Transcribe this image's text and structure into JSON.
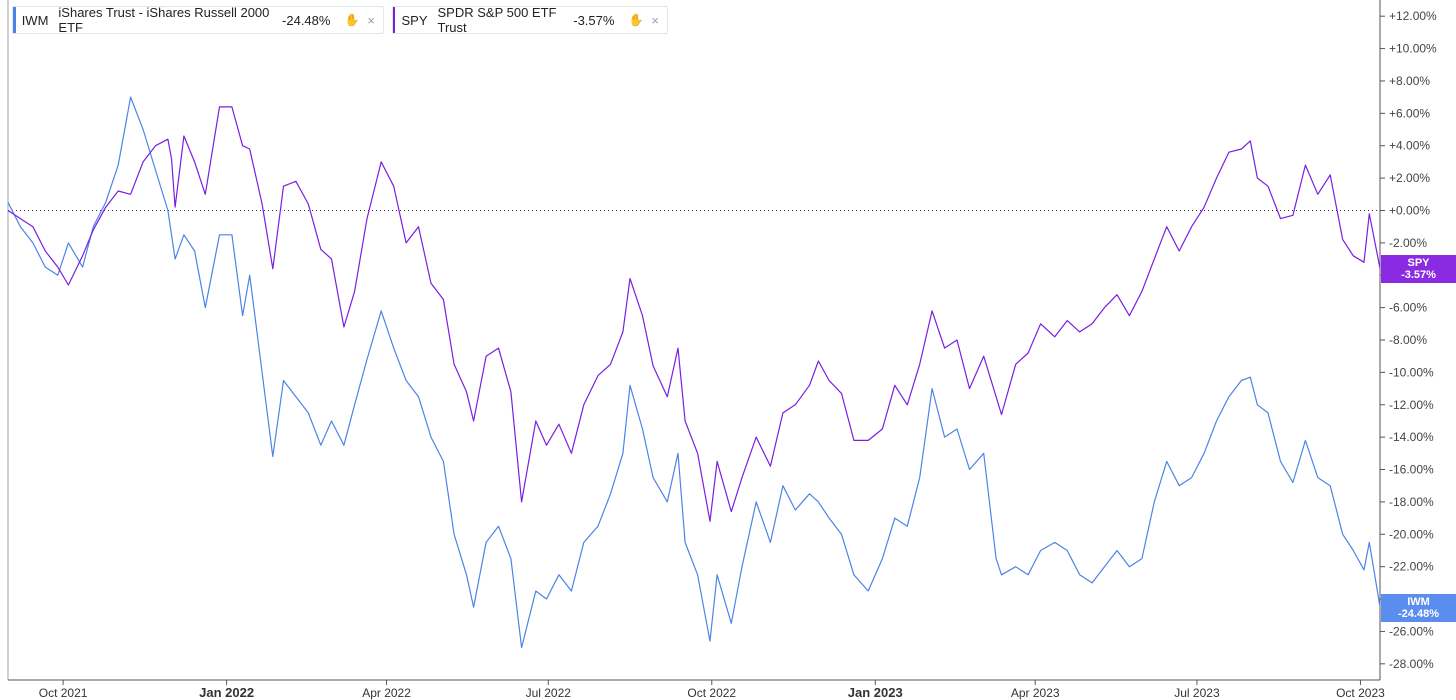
{
  "legend": [
    {
      "symbol": "IWM",
      "name": "iShares Trust - iShares Russell 2000 ETF",
      "change": "-24.48%",
      "color": "#4c84e6",
      "icon": "share-icon",
      "close": "×"
    },
    {
      "symbol": "SPY",
      "name": "SPDR S&P 500 ETF Trust",
      "change": "-3.57%",
      "color": "#7a1fe0",
      "icon": "share-icon",
      "close": "×"
    }
  ],
  "end_labels": {
    "spy": {
      "sym": "SPY",
      "val": "-3.57%",
      "color": "#8a2be2"
    },
    "iwm": {
      "sym": "IWM",
      "val": "-24.48%",
      "color": "#5b8def"
    }
  },
  "chart_data": {
    "type": "line",
    "ylim": [
      -29,
      13
    ],
    "yticks": [
      "+12.00%",
      "+10.00%",
      "+8.00%",
      "+6.00%",
      "+4.00%",
      "+2.00%",
      "+0.00%",
      "-2.00%",
      "-4.00%",
      "-6.00%",
      "-8.00%",
      "-10.00%",
      "-12.00%",
      "-14.00%",
      "-16.00%",
      "-18.00%",
      "-20.00%",
      "-22.00%",
      "-24.00%",
      "-26.00%",
      "-28.00%"
    ],
    "ytick_values": [
      12,
      10,
      8,
      6,
      4,
      2,
      0,
      -2,
      -4,
      -6,
      -8,
      -10,
      -12,
      -14,
      -16,
      -18,
      -20,
      -22,
      -24,
      -26,
      -28
    ],
    "xlim": [
      "2021-08-31",
      "2023-10-12"
    ],
    "xticks": [
      {
        "label": "Oct 2021",
        "date": "2021-10-01",
        "major": false
      },
      {
        "label": "Jan 2022",
        "date": "2022-01-01",
        "major": true
      },
      {
        "label": "Apr 2022",
        "date": "2022-04-01",
        "major": false
      },
      {
        "label": "Jul 2022",
        "date": "2022-07-01",
        "major": false
      },
      {
        "label": "Oct 2022",
        "date": "2022-10-01",
        "major": false
      },
      {
        "label": "Jan 2023",
        "date": "2023-01-01",
        "major": true
      },
      {
        "label": "Apr 2023",
        "date": "2023-04-01",
        "major": false
      },
      {
        "label": "Jul 2023",
        "date": "2023-07-01",
        "major": false
      },
      {
        "label": "Oct 2023",
        "date": "2023-10-01",
        "major": false
      }
    ],
    "baseline": 0,
    "series": [
      {
        "name": "SPY",
        "color": "#7a1fe0",
        "points": [
          [
            "2021-08-31",
            0.0
          ],
          [
            "2021-09-07",
            -0.5
          ],
          [
            "2021-09-14",
            -1.0
          ],
          [
            "2021-09-21",
            -2.5
          ],
          [
            "2021-09-28",
            -3.5
          ],
          [
            "2021-10-04",
            -4.6
          ],
          [
            "2021-10-12",
            -2.8
          ],
          [
            "2021-10-18",
            -1.2
          ],
          [
            "2021-10-25",
            0.2
          ],
          [
            "2021-11-01",
            1.2
          ],
          [
            "2021-11-08",
            1.0
          ],
          [
            "2021-11-15",
            3.0
          ],
          [
            "2021-11-22",
            4.0
          ],
          [
            "2021-11-29",
            4.4
          ],
          [
            "2021-12-01",
            3.2
          ],
          [
            "2021-12-03",
            0.2
          ],
          [
            "2021-12-08",
            4.6
          ],
          [
            "2021-12-14",
            3.0
          ],
          [
            "2021-12-20",
            1.0
          ],
          [
            "2021-12-28",
            6.4
          ],
          [
            "2022-01-04",
            6.4
          ],
          [
            "2022-01-10",
            4.0
          ],
          [
            "2022-01-14",
            3.8
          ],
          [
            "2022-01-21",
            0.4
          ],
          [
            "2022-01-27",
            -3.6
          ],
          [
            "2022-02-02",
            1.5
          ],
          [
            "2022-02-09",
            1.8
          ],
          [
            "2022-02-16",
            0.4
          ],
          [
            "2022-02-23",
            -2.4
          ],
          [
            "2022-03-01",
            -3.0
          ],
          [
            "2022-03-08",
            -7.2
          ],
          [
            "2022-03-14",
            -5.0
          ],
          [
            "2022-03-21",
            -0.5
          ],
          [
            "2022-03-29",
            3.0
          ],
          [
            "2022-04-05",
            1.5
          ],
          [
            "2022-04-12",
            -2.0
          ],
          [
            "2022-04-19",
            -1.0
          ],
          [
            "2022-04-26",
            -4.5
          ],
          [
            "2022-05-03",
            -5.5
          ],
          [
            "2022-05-09",
            -9.5
          ],
          [
            "2022-05-16",
            -11.2
          ],
          [
            "2022-05-20",
            -13.0
          ],
          [
            "2022-05-27",
            -9.0
          ],
          [
            "2022-06-03",
            -8.5
          ],
          [
            "2022-06-10",
            -11.2
          ],
          [
            "2022-06-16",
            -18.0
          ],
          [
            "2022-06-24",
            -13.0
          ],
          [
            "2022-06-30",
            -14.5
          ],
          [
            "2022-07-07",
            -13.2
          ],
          [
            "2022-07-14",
            -15.0
          ],
          [
            "2022-07-21",
            -12.0
          ],
          [
            "2022-07-29",
            -10.2
          ],
          [
            "2022-08-05",
            -9.5
          ],
          [
            "2022-08-12",
            -7.5
          ],
          [
            "2022-08-16",
            -4.2
          ],
          [
            "2022-08-23",
            -6.5
          ],
          [
            "2022-08-29",
            -9.6
          ],
          [
            "2022-09-06",
            -11.5
          ],
          [
            "2022-09-12",
            -8.5
          ],
          [
            "2022-09-16",
            -13.0
          ],
          [
            "2022-09-23",
            -15.0
          ],
          [
            "2022-09-30",
            -19.2
          ],
          [
            "2022-10-04",
            -15.5
          ],
          [
            "2022-10-12",
            -18.6
          ],
          [
            "2022-10-18",
            -16.5
          ],
          [
            "2022-10-26",
            -14.0
          ],
          [
            "2022-11-03",
            -15.8
          ],
          [
            "2022-11-10",
            -12.5
          ],
          [
            "2022-11-17",
            -12.0
          ],
          [
            "2022-11-25",
            -10.8
          ],
          [
            "2022-11-30",
            -9.3
          ],
          [
            "2022-12-06",
            -10.5
          ],
          [
            "2022-12-13",
            -11.3
          ],
          [
            "2022-12-20",
            -14.2
          ],
          [
            "2022-12-28",
            -14.2
          ],
          [
            "2023-01-05",
            -13.5
          ],
          [
            "2023-01-12",
            -10.8
          ],
          [
            "2023-01-19",
            -12.0
          ],
          [
            "2023-01-26",
            -9.5
          ],
          [
            "2023-02-02",
            -6.2
          ],
          [
            "2023-02-09",
            -8.5
          ],
          [
            "2023-02-16",
            -8.0
          ],
          [
            "2023-02-23",
            -11.0
          ],
          [
            "2023-03-03",
            -9.0
          ],
          [
            "2023-03-10",
            -11.5
          ],
          [
            "2023-03-13",
            -12.6
          ],
          [
            "2023-03-21",
            -9.5
          ],
          [
            "2023-03-28",
            -8.8
          ],
          [
            "2023-04-04",
            -7.0
          ],
          [
            "2023-04-12",
            -7.8
          ],
          [
            "2023-04-19",
            -6.8
          ],
          [
            "2023-04-26",
            -7.5
          ],
          [
            "2023-05-03",
            -7.0
          ],
          [
            "2023-05-10",
            -6.0
          ],
          [
            "2023-05-17",
            -5.2
          ],
          [
            "2023-05-24",
            -6.5
          ],
          [
            "2023-05-31",
            -5.0
          ],
          [
            "2023-06-07",
            -3.0
          ],
          [
            "2023-06-14",
            -1.0
          ],
          [
            "2023-06-21",
            -2.5
          ],
          [
            "2023-06-28",
            -1.0
          ],
          [
            "2023-07-05",
            0.2
          ],
          [
            "2023-07-12",
            2.0
          ],
          [
            "2023-07-19",
            3.6
          ],
          [
            "2023-07-26",
            3.8
          ],
          [
            "2023-07-31",
            4.3
          ],
          [
            "2023-08-04",
            2.0
          ],
          [
            "2023-08-10",
            1.5
          ],
          [
            "2023-08-17",
            -0.5
          ],
          [
            "2023-08-24",
            -0.3
          ],
          [
            "2023-08-31",
            2.8
          ],
          [
            "2023-09-07",
            1.0
          ],
          [
            "2023-09-14",
            2.2
          ],
          [
            "2023-09-21",
            -1.8
          ],
          [
            "2023-09-27",
            -2.8
          ],
          [
            "2023-10-03",
            -3.2
          ],
          [
            "2023-10-06",
            -0.2
          ],
          [
            "2023-10-12",
            -3.57
          ]
        ]
      },
      {
        "name": "IWM",
        "color": "#4c84e6",
        "points": [
          [
            "2021-08-31",
            0.5
          ],
          [
            "2021-09-07",
            -1.0
          ],
          [
            "2021-09-14",
            -2.0
          ],
          [
            "2021-09-21",
            -3.5
          ],
          [
            "2021-09-28",
            -4.0
          ],
          [
            "2021-10-04",
            -2.0
          ],
          [
            "2021-10-12",
            -3.5
          ],
          [
            "2021-10-18",
            -1.0
          ],
          [
            "2021-10-25",
            0.5
          ],
          [
            "2021-11-01",
            2.8
          ],
          [
            "2021-11-08",
            7.0
          ],
          [
            "2021-11-15",
            5.0
          ],
          [
            "2021-11-22",
            2.5
          ],
          [
            "2021-11-29",
            0.0
          ],
          [
            "2021-12-03",
            -3.0
          ],
          [
            "2021-12-08",
            -1.5
          ],
          [
            "2021-12-14",
            -2.5
          ],
          [
            "2021-12-20",
            -6.0
          ],
          [
            "2021-12-28",
            -1.5
          ],
          [
            "2022-01-04",
            -1.5
          ],
          [
            "2022-01-10",
            -6.5
          ],
          [
            "2022-01-14",
            -4.0
          ],
          [
            "2022-01-21",
            -10.0
          ],
          [
            "2022-01-27",
            -15.2
          ],
          [
            "2022-02-02",
            -10.5
          ],
          [
            "2022-02-09",
            -11.5
          ],
          [
            "2022-02-16",
            -12.5
          ],
          [
            "2022-02-23",
            -14.5
          ],
          [
            "2022-03-01",
            -13.0
          ],
          [
            "2022-03-08",
            -14.5
          ],
          [
            "2022-03-14",
            -12.0
          ],
          [
            "2022-03-21",
            -9.2
          ],
          [
            "2022-03-29",
            -6.2
          ],
          [
            "2022-04-05",
            -8.5
          ],
          [
            "2022-04-12",
            -10.5
          ],
          [
            "2022-04-19",
            -11.5
          ],
          [
            "2022-04-26",
            -14.0
          ],
          [
            "2022-05-03",
            -15.5
          ],
          [
            "2022-05-09",
            -20.0
          ],
          [
            "2022-05-16",
            -22.5
          ],
          [
            "2022-05-20",
            -24.5
          ],
          [
            "2022-05-27",
            -20.5
          ],
          [
            "2022-06-03",
            -19.5
          ],
          [
            "2022-06-10",
            -21.5
          ],
          [
            "2022-06-16",
            -27.0
          ],
          [
            "2022-06-24",
            -23.5
          ],
          [
            "2022-06-30",
            -24.0
          ],
          [
            "2022-07-07",
            -22.5
          ],
          [
            "2022-07-14",
            -23.5
          ],
          [
            "2022-07-21",
            -20.5
          ],
          [
            "2022-07-29",
            -19.5
          ],
          [
            "2022-08-05",
            -17.5
          ],
          [
            "2022-08-12",
            -15.0
          ],
          [
            "2022-08-16",
            -10.8
          ],
          [
            "2022-08-23",
            -13.5
          ],
          [
            "2022-08-29",
            -16.5
          ],
          [
            "2022-09-06",
            -18.0
          ],
          [
            "2022-09-12",
            -15.0
          ],
          [
            "2022-09-16",
            -20.5
          ],
          [
            "2022-09-23",
            -22.5
          ],
          [
            "2022-09-30",
            -26.6
          ],
          [
            "2022-10-04",
            -22.5
          ],
          [
            "2022-10-12",
            -25.5
          ],
          [
            "2022-10-18",
            -22.0
          ],
          [
            "2022-10-26",
            -18.0
          ],
          [
            "2022-11-03",
            -20.5
          ],
          [
            "2022-11-10",
            -17.0
          ],
          [
            "2022-11-17",
            -18.5
          ],
          [
            "2022-11-25",
            -17.5
          ],
          [
            "2022-11-30",
            -18.0
          ],
          [
            "2022-12-06",
            -19.0
          ],
          [
            "2022-12-13",
            -20.0
          ],
          [
            "2022-12-20",
            -22.5
          ],
          [
            "2022-12-28",
            -23.5
          ],
          [
            "2023-01-05",
            -21.5
          ],
          [
            "2023-01-12",
            -19.0
          ],
          [
            "2023-01-19",
            -19.5
          ],
          [
            "2023-01-26",
            -16.5
          ],
          [
            "2023-02-02",
            -11.0
          ],
          [
            "2023-02-09",
            -14.0
          ],
          [
            "2023-02-16",
            -13.5
          ],
          [
            "2023-02-23",
            -16.0
          ],
          [
            "2023-03-03",
            -15.0
          ],
          [
            "2023-03-10",
            -21.5
          ],
          [
            "2023-03-13",
            -22.5
          ],
          [
            "2023-03-21",
            -22.0
          ],
          [
            "2023-03-28",
            -22.5
          ],
          [
            "2023-04-04",
            -21.0
          ],
          [
            "2023-04-12",
            -20.5
          ],
          [
            "2023-04-19",
            -21.0
          ],
          [
            "2023-04-26",
            -22.5
          ],
          [
            "2023-05-03",
            -23.0
          ],
          [
            "2023-05-10",
            -22.0
          ],
          [
            "2023-05-17",
            -21.0
          ],
          [
            "2023-05-24",
            -22.0
          ],
          [
            "2023-05-31",
            -21.5
          ],
          [
            "2023-06-07",
            -18.0
          ],
          [
            "2023-06-14",
            -15.5
          ],
          [
            "2023-06-21",
            -17.0
          ],
          [
            "2023-06-28",
            -16.5
          ],
          [
            "2023-07-05",
            -15.0
          ],
          [
            "2023-07-12",
            -13.0
          ],
          [
            "2023-07-19",
            -11.5
          ],
          [
            "2023-07-26",
            -10.5
          ],
          [
            "2023-07-31",
            -10.3
          ],
          [
            "2023-08-04",
            -12.0
          ],
          [
            "2023-08-10",
            -12.5
          ],
          [
            "2023-08-17",
            -15.5
          ],
          [
            "2023-08-24",
            -16.8
          ],
          [
            "2023-08-31",
            -14.2
          ],
          [
            "2023-09-07",
            -16.5
          ],
          [
            "2023-09-14",
            -17.0
          ],
          [
            "2023-09-21",
            -20.0
          ],
          [
            "2023-09-27",
            -21.0
          ],
          [
            "2023-10-03",
            -22.2
          ],
          [
            "2023-10-06",
            -20.5
          ],
          [
            "2023-10-12",
            -24.48
          ]
        ]
      }
    ]
  }
}
